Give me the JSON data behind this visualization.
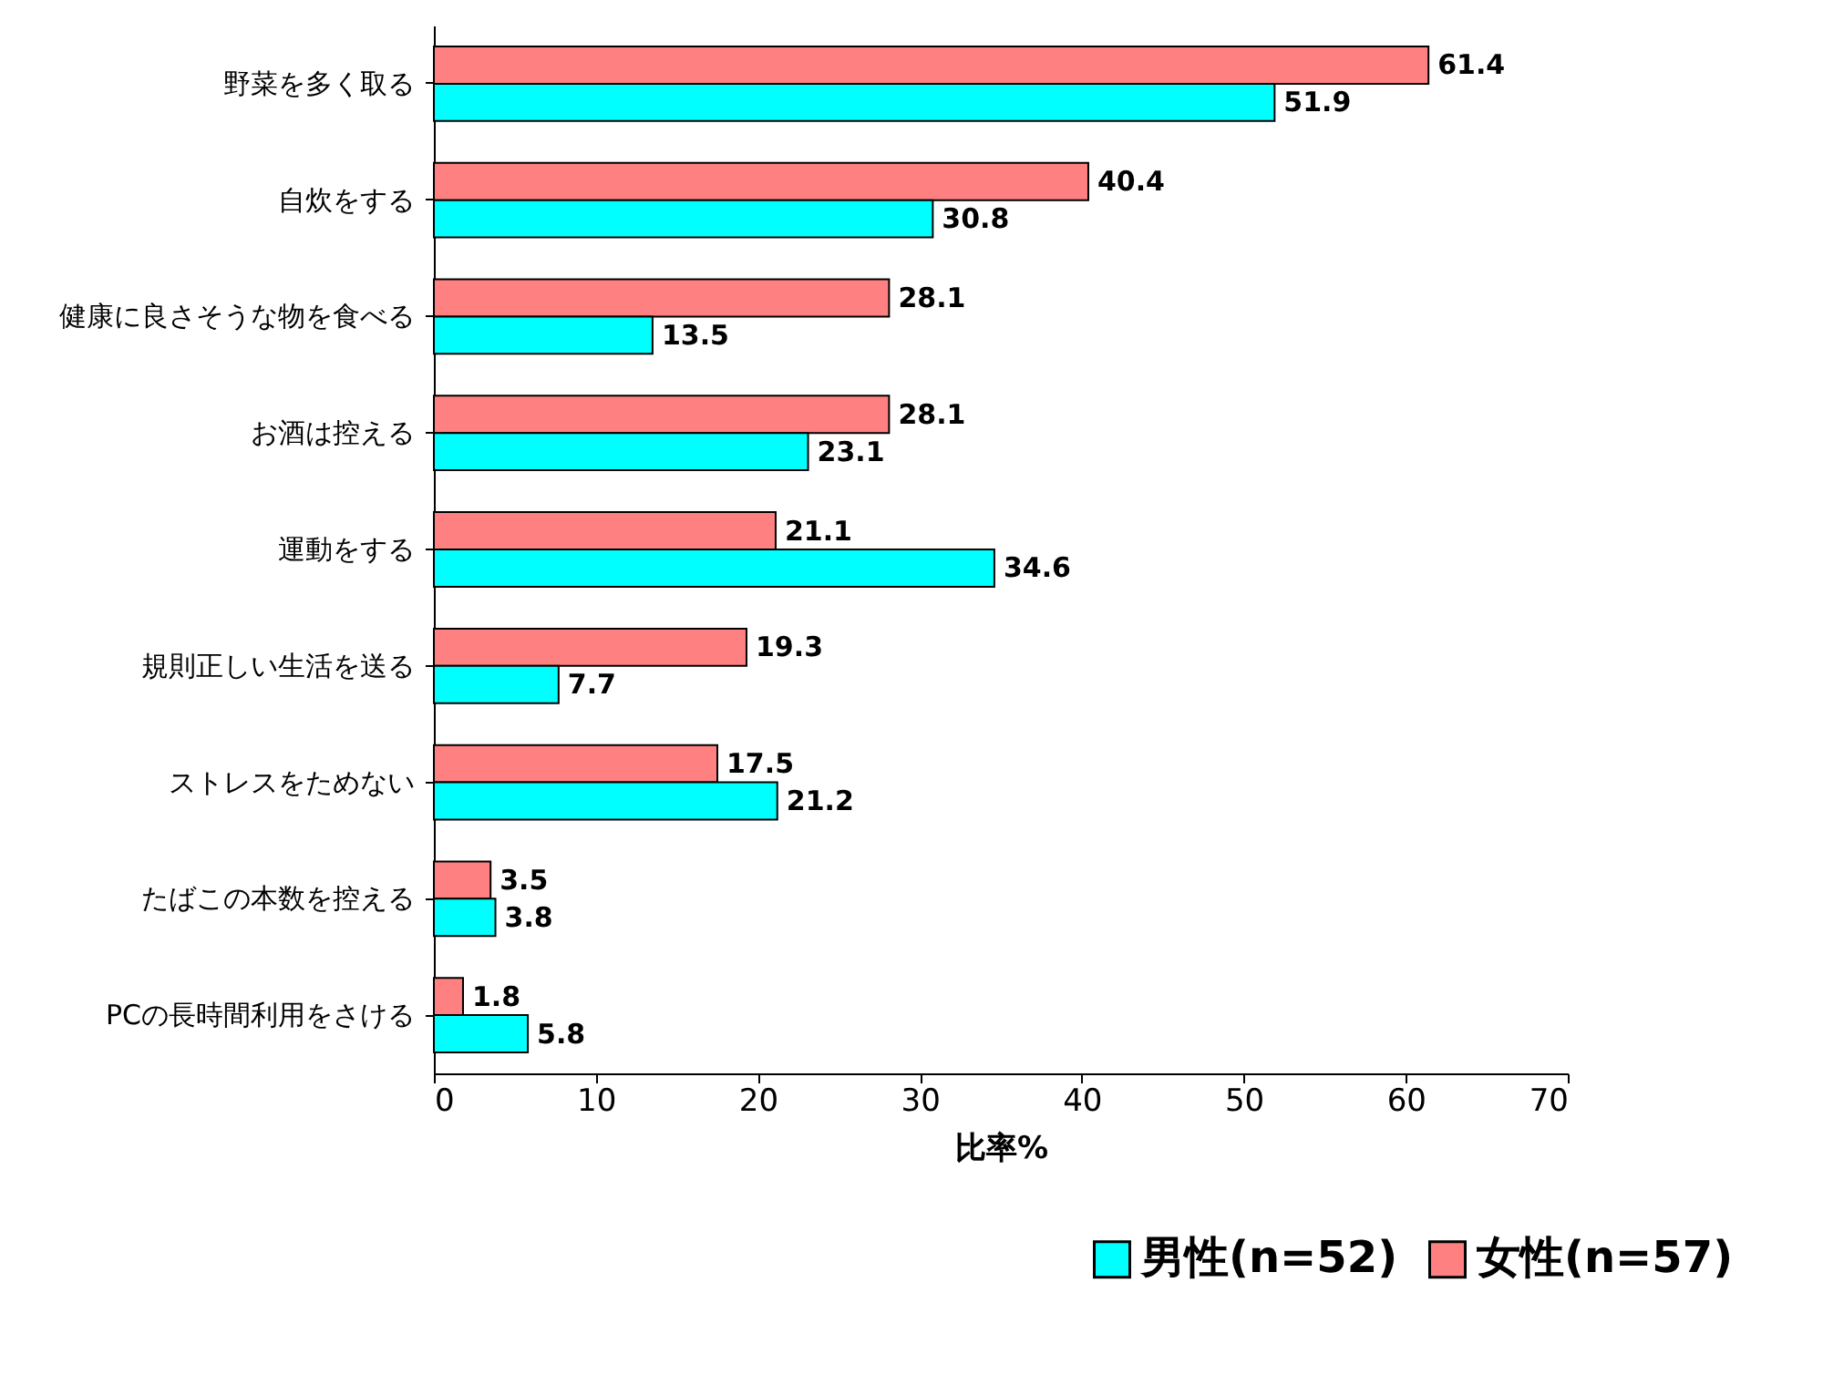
{
  "chart_data": {
    "type": "bar",
    "orientation": "horizontal",
    "xlabel": "比率%",
    "categories": [
      "野菜を多く取る",
      "自炊をする",
      "健康に良さそうな物を食べる",
      "お酒は控える",
      "運動をする",
      "規則正しい生活を送る",
      "ストレスをためない",
      "たばこの本数を控える",
      "PCの長時間利用をさける"
    ],
    "series": [
      {
        "name": "女性(n=57)",
        "color": "#ff8080",
        "values": [
          61.4,
          40.4,
          28.1,
          28.1,
          21.1,
          19.3,
          17.5,
          3.5,
          1.8
        ]
      },
      {
        "name": "男性(n=52)",
        "color": "#00ffff",
        "values": [
          51.9,
          30.8,
          13.5,
          23.1,
          34.6,
          7.7,
          21.2,
          3.8,
          5.8
        ]
      }
    ],
    "xlim": [
      0,
      70
    ],
    "xticks": [
      0,
      10,
      20,
      30,
      40,
      50,
      60,
      70
    ],
    "grid": false,
    "data_labels": true,
    "legend": "bottom right"
  }
}
